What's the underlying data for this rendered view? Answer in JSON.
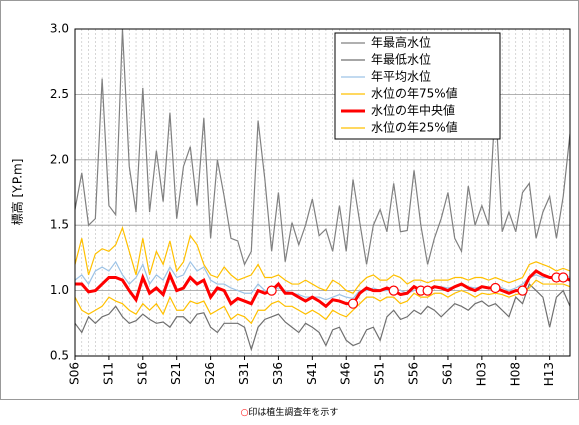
{
  "chart_data": {
    "type": "line",
    "y_label": "標高 [Y.P.m]",
    "note": "○印は植生調査年を示す",
    "x": [
      1931,
      1932,
      1933,
      1934,
      1935,
      1936,
      1937,
      1938,
      1939,
      1940,
      1941,
      1942,
      1943,
      1944,
      1945,
      1946,
      1947,
      1948,
      1949,
      1950,
      1951,
      1952,
      1953,
      1954,
      1955,
      1956,
      1957,
      1958,
      1959,
      1960,
      1961,
      1962,
      1963,
      1964,
      1965,
      1966,
      1967,
      1968,
      1969,
      1970,
      1971,
      1972,
      1973,
      1974,
      1975,
      1976,
      1977,
      1978,
      1979,
      1980,
      1981,
      1982,
      1983,
      1984,
      1985,
      1986,
      1987,
      1988,
      1989,
      1990,
      1991,
      1992,
      1993,
      1994,
      1995,
      1996,
      1997,
      1998,
      1999,
      2000,
      2001,
      2002,
      2003,
      2004
    ],
    "xlim": [
      1931,
      2004
    ],
    "xticks": [
      {
        "value": 1931,
        "label": "S06"
      },
      {
        "value": 1936,
        "label": "S11"
      },
      {
        "value": 1941,
        "label": "S16"
      },
      {
        "value": 1946,
        "label": "S21"
      },
      {
        "value": 1951,
        "label": "S26"
      },
      {
        "value": 1956,
        "label": "S31"
      },
      {
        "value": 1961,
        "label": "S36"
      },
      {
        "value": 1966,
        "label": "S41"
      },
      {
        "value": 1971,
        "label": "S46"
      },
      {
        "value": 1976,
        "label": "S51"
      },
      {
        "value": 1981,
        "label": "S56"
      },
      {
        "value": 1986,
        "label": "S61"
      },
      {
        "value": 1991,
        "label": "H03"
      },
      {
        "value": 1996,
        "label": "H08"
      },
      {
        "value": 2001,
        "label": "H13"
      }
    ],
    "ylim": [
      0.5,
      3.0
    ],
    "yticks": [
      {
        "value": 0.5,
        "label": "0.5"
      },
      {
        "value": 1.0,
        "label": "1.0"
      },
      {
        "value": 1.5,
        "label": "1.5"
      },
      {
        "value": 2.0,
        "label": "2.0"
      },
      {
        "value": 2.5,
        "label": "2.5"
      },
      {
        "value": 3.0,
        "label": "3.0"
      }
    ],
    "grid": true,
    "legend": "upper right",
    "series": [
      {
        "name": "年最高水位",
        "color": "#808080",
        "width": 1.2,
        "values": [
          1.62,
          1.9,
          1.5,
          1.55,
          2.62,
          1.65,
          1.58,
          3.0,
          1.95,
          1.6,
          2.55,
          1.6,
          2.07,
          1.68,
          2.36,
          1.55,
          1.95,
          2.1,
          1.65,
          2.32,
          1.4,
          2.0,
          1.72,
          1.4,
          1.38,
          1.2,
          1.3,
          2.3,
          1.85,
          1.3,
          1.75,
          1.22,
          1.52,
          1.35,
          1.5,
          1.7,
          1.42,
          1.47,
          1.3,
          1.65,
          1.3,
          1.85,
          1.52,
          1.2,
          1.5,
          1.62,
          1.45,
          1.82,
          1.45,
          1.46,
          1.92,
          1.5,
          1.2,
          1.4,
          1.55,
          1.75,
          1.4,
          1.3,
          1.8,
          1.5,
          1.65,
          1.5,
          2.45,
          1.45,
          1.6,
          1.45,
          1.75,
          1.82,
          1.4,
          1.6,
          1.72,
          1.4,
          1.72,
          2.2
        ]
      },
      {
        "name": "年最低水位",
        "color": "#707070",
        "width": 1.2,
        "values": [
          0.75,
          0.68,
          0.8,
          0.75,
          0.8,
          0.82,
          0.88,
          0.8,
          0.75,
          0.77,
          0.82,
          0.78,
          0.75,
          0.76,
          0.72,
          0.8,
          0.8,
          0.75,
          0.82,
          0.83,
          0.72,
          0.68,
          0.75,
          0.75,
          0.75,
          0.72,
          0.55,
          0.72,
          0.78,
          0.8,
          0.82,
          0.76,
          0.72,
          0.68,
          0.75,
          0.72,
          0.68,
          0.58,
          0.7,
          0.72,
          0.62,
          0.58,
          0.6,
          0.7,
          0.72,
          0.62,
          0.8,
          0.85,
          0.78,
          0.8,
          0.85,
          0.82,
          0.88,
          0.85,
          0.8,
          0.85,
          0.9,
          0.88,
          0.85,
          0.9,
          0.92,
          0.88,
          0.9,
          0.85,
          0.8,
          0.95,
          0.9,
          1.05,
          1.0,
          0.95,
          0.72,
          0.95,
          1.0,
          0.88
        ]
      },
      {
        "name": "年平均水位",
        "color": "#9dc3e6",
        "width": 1.2,
        "values": [
          1.08,
          1.12,
          1.05,
          1.15,
          1.18,
          1.15,
          1.22,
          1.12,
          1.05,
          1.1,
          1.2,
          1.05,
          1.12,
          1.08,
          1.18,
          1.1,
          1.12,
          1.22,
          1.15,
          1.18,
          1.08,
          1.05,
          1.05,
          1.02,
          1.0,
          0.98,
          0.98,
          1.05,
          1.0,
          1.0,
          1.02,
          1.0,
          0.98,
          0.97,
          0.95,
          0.95,
          0.95,
          0.93,
          0.95,
          0.97,
          0.95,
          0.94,
          1.0,
          1.0,
          1.02,
          1.0,
          1.0,
          1.02,
          1.0,
          0.98,
          1.0,
          1.02,
          1.0,
          1.02,
          1.03,
          1.02,
          1.03,
          1.05,
          1.03,
          1.02,
          1.03,
          1.02,
          1.05,
          1.02,
          1.0,
          1.02,
          1.05,
          1.1,
          1.12,
          1.1,
          1.1,
          1.1,
          1.12,
          1.1
        ]
      },
      {
        "name": "水位の年75%値",
        "color": "#ffc000",
        "width": 1.2,
        "values": [
          1.2,
          1.4,
          1.12,
          1.28,
          1.32,
          1.3,
          1.35,
          1.48,
          1.3,
          1.12,
          1.4,
          1.12,
          1.3,
          1.2,
          1.38,
          1.15,
          1.22,
          1.42,
          1.35,
          1.2,
          1.12,
          1.1,
          1.18,
          1.12,
          1.08,
          1.1,
          1.12,
          1.2,
          1.1,
          1.1,
          1.12,
          1.08,
          1.05,
          1.05,
          1.08,
          1.05,
          1.02,
          1.0,
          1.08,
          1.05,
          1.0,
          0.98,
          1.05,
          1.1,
          1.12,
          1.08,
          1.08,
          1.12,
          1.1,
          1.05,
          1.08,
          1.08,
          1.06,
          1.08,
          1.08,
          1.08,
          1.1,
          1.1,
          1.08,
          1.1,
          1.1,
          1.08,
          1.1,
          1.08,
          1.06,
          1.08,
          1.1,
          1.2,
          1.22,
          1.2,
          1.18,
          1.15,
          1.17,
          1.15
        ]
      },
      {
        "name": "水位の年中央値",
        "color": "#ff0000",
        "width": 3,
        "values": [
          1.05,
          1.05,
          0.99,
          1.0,
          1.05,
          1.1,
          1.1,
          1.08,
          1.0,
          0.93,
          1.1,
          0.98,
          1.02,
          0.97,
          1.12,
          1.0,
          1.02,
          1.1,
          1.05,
          1.08,
          0.95,
          1.02,
          1.0,
          0.9,
          0.94,
          0.92,
          0.9,
          1.0,
          0.98,
          1.0,
          1.05,
          0.98,
          0.98,
          0.95,
          0.92,
          0.95,
          0.92,
          0.88,
          0.93,
          0.92,
          0.9,
          0.9,
          0.98,
          1.02,
          1.0,
          1.0,
          1.02,
          1.0,
          0.97,
          0.98,
          1.03,
          1.0,
          1.0,
          1.03,
          1.02,
          1.0,
          1.03,
          1.05,
          1.02,
          1.0,
          1.03,
          1.02,
          1.02,
          1.0,
          0.98,
          1.0,
          1.0,
          1.1,
          1.15,
          1.12,
          1.1,
          1.1,
          1.1,
          1.08
        ]
      },
      {
        "name": "水位の年25%値",
        "color": "#ffc000",
        "width": 1.2,
        "values": [
          0.95,
          0.85,
          0.82,
          0.85,
          0.88,
          0.95,
          0.92,
          0.9,
          0.85,
          0.82,
          0.9,
          0.85,
          0.9,
          0.82,
          0.95,
          0.85,
          0.85,
          0.92,
          0.9,
          0.92,
          0.82,
          0.85,
          0.88,
          0.78,
          0.82,
          0.8,
          0.75,
          0.85,
          0.85,
          0.9,
          0.92,
          0.88,
          0.88,
          0.85,
          0.82,
          0.85,
          0.82,
          0.78,
          0.85,
          0.82,
          0.8,
          0.85,
          0.9,
          0.95,
          0.95,
          0.92,
          0.95,
          0.95,
          0.9,
          0.92,
          0.98,
          0.95,
          0.95,
          0.98,
          0.98,
          0.95,
          0.98,
          1.0,
          0.98,
          0.95,
          0.98,
          0.97,
          0.98,
          0.97,
          0.95,
          0.97,
          0.98,
          1.02,
          1.08,
          1.05,
          1.05,
          1.05,
          1.05,
          1.03
        ]
      }
    ],
    "survey_years": [
      1960,
      1972,
      1978,
      1982,
      1983,
      1993,
      1997,
      2002,
      2003
    ],
    "survey_series": 4
  }
}
